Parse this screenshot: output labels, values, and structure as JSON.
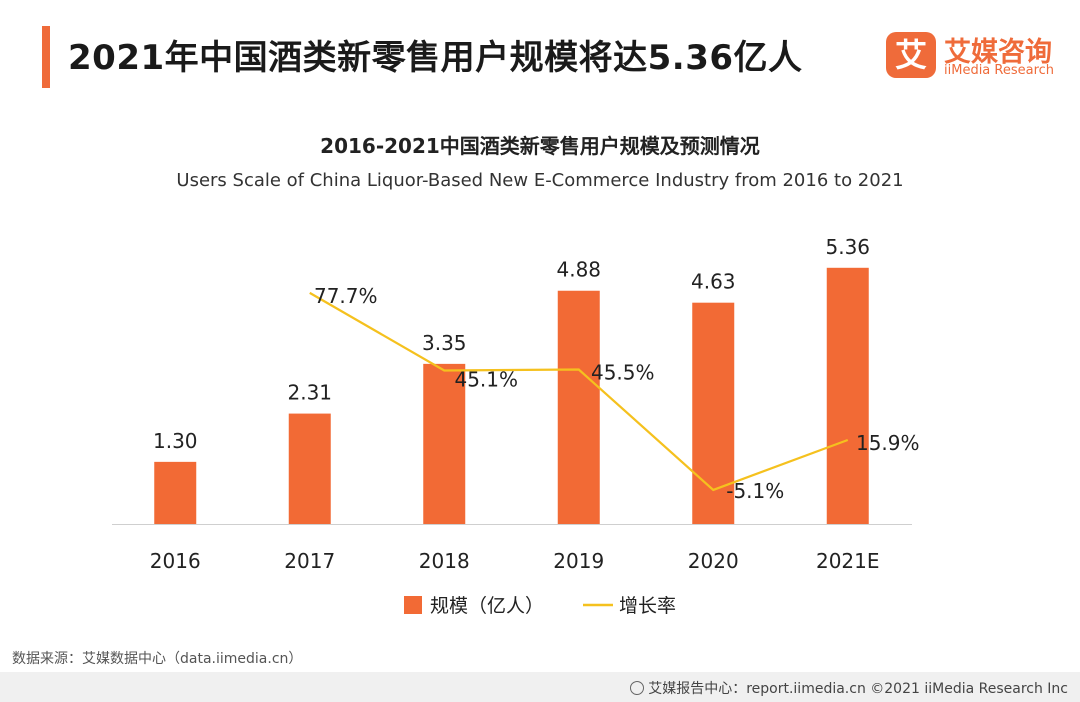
{
  "header": {
    "title": "2021年中国酒类新零售用户规模将达5.36亿人",
    "logo_mark": "艾",
    "logo_cn": "艾媒咨询",
    "logo_en": "iiMedia Research",
    "accent_color": "#ef6b3a"
  },
  "chart_data": {
    "type": "bar",
    "title": "2016-2021中国酒类新零售用户规模及预测情况",
    "subtitle": "Users Scale of China  Liquor-Based New E-Commerce Industry from 2016 to 2021",
    "categories": [
      "2016",
      "2017",
      "2018",
      "2019",
      "2020",
      "2021E"
    ],
    "series": [
      {
        "name": "规模（亿人）",
        "type": "bar",
        "values": [
          1.3,
          2.31,
          3.35,
          4.88,
          4.63,
          5.36
        ],
        "labels": [
          "1.30",
          "2.31",
          "3.35",
          "4.88",
          "4.63",
          "5.36"
        ],
        "color": "#f26a35"
      },
      {
        "name": "增长率",
        "type": "line",
        "values": [
          null,
          77.7,
          45.1,
          45.5,
          -5.1,
          15.9
        ],
        "labels": [
          "",
          "77.7%",
          "45.1%",
          "45.5%",
          "-5.1%",
          "15.9%"
        ],
        "color": "#f5c11e"
      }
    ],
    "xlabel": "",
    "ylabel": "",
    "grid": false,
    "legend_position": "bottom"
  },
  "footer": {
    "source": "数据来源：艾媒数据中心（data.iimedia.cn）",
    "credit": "艾媒报告中心：report.iimedia.cn   ©2021  iiMedia Research  Inc"
  }
}
